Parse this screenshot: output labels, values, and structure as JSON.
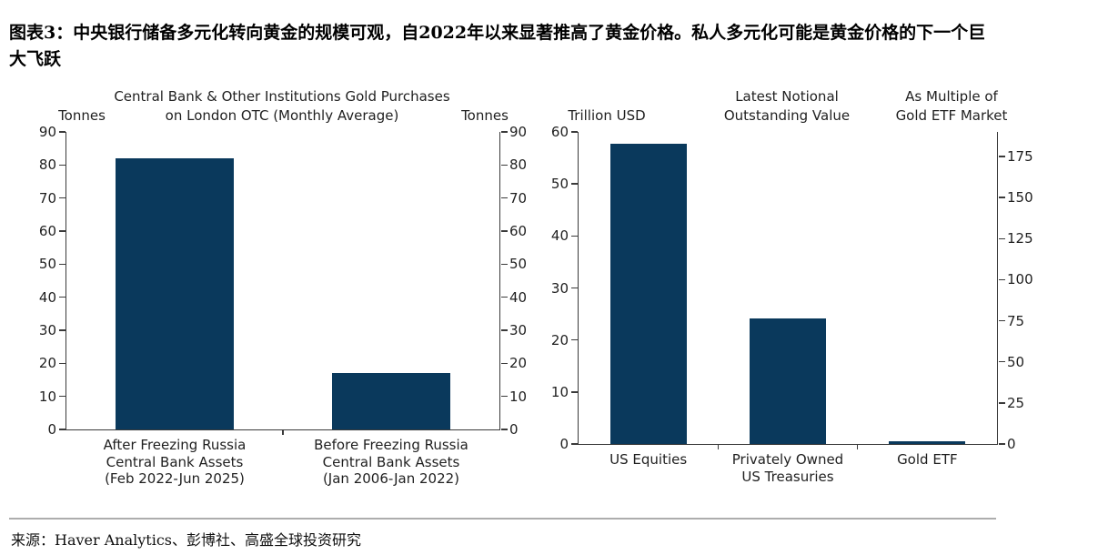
{
  "header": {
    "title": "图表3：中央银行储备多元化转向黄金的规模可观，自2022年以来显著推高了黄金价格。私人多元化可能是黄金价格的下一个巨\n大飞跃"
  },
  "footer": {
    "source": "来源：Haver Analytics、彭博社、高盛全球投资研究"
  },
  "colors": {
    "bar": "#0a395c",
    "axis": "#3a3a3a",
    "text": "#1f1f1f",
    "rule": "#adadad"
  },
  "chart_data": [
    {
      "type": "bar",
      "title": "Central Bank & Other Institutions Gold Purchases\non London OTC (Monthly Average)",
      "left_axis_label": "Tonnes",
      "right_axis_label": "Tonnes",
      "categories": [
        "After Freezing Russia\nCentral Bank Assets\n(Feb 2022-Jun 2025)",
        "Before Freezing Russia\nCentral Bank Assets\n(Jan 2006-Jan 2022)"
      ],
      "values": [
        82,
        17
      ],
      "left_axis": {
        "min": 0,
        "max": 90,
        "ticks": [
          0,
          10,
          20,
          30,
          40,
          50,
          60,
          70,
          80,
          90
        ]
      },
      "right_axis": {
        "min": 0,
        "max": 90,
        "ticks": [
          0,
          10,
          20,
          30,
          40,
          50,
          60,
          70,
          80,
          90
        ]
      },
      "grid": false,
      "legend": "none",
      "bar_color": "#0a395c"
    },
    {
      "type": "bar",
      "title": "Latest Notional\nOutstanding Value",
      "left_axis_label": "Trillion USD",
      "right_axis_label": "As Multiple of\nGold ETF Market",
      "categories": [
        "US Equities",
        "Privately Owned\nUS Treasuries",
        "Gold ETF"
      ],
      "values": [
        57.7,
        24.2,
        0.5
      ],
      "left_axis": {
        "min": 0,
        "max": 60,
        "ticks": [
          0,
          10,
          20,
          30,
          40,
          50,
          60
        ]
      },
      "right_axis": {
        "min": 0,
        "max": 190,
        "ticks": [
          0,
          25,
          50,
          75,
          100,
          125,
          150,
          175
        ]
      },
      "grid": false,
      "legend": "none",
      "bar_color": "#0a395c"
    }
  ]
}
